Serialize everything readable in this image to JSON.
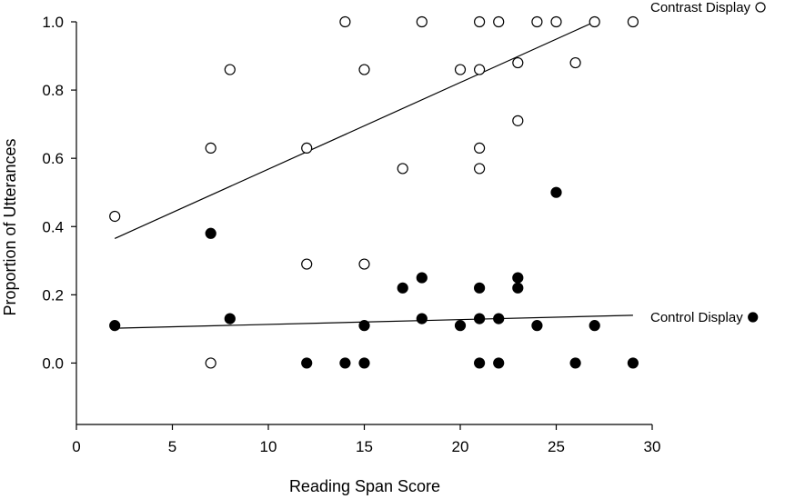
{
  "chart_data": {
    "type": "scatter",
    "xlabel": "Reading Span Score",
    "ylabel": "Proportion of Utterances",
    "xlim": [
      0,
      30
    ],
    "ylim": [
      -0.18,
      1.0
    ],
    "x_ticks": [
      0,
      5,
      10,
      15,
      20,
      25,
      30
    ],
    "y_ticks": [
      0.0,
      0.2,
      0.4,
      0.6,
      0.8,
      1.0
    ],
    "x_tick_labels": [
      "0",
      "5",
      "10",
      "15",
      "20",
      "25",
      "30"
    ],
    "y_tick_labels": [
      "0.0",
      "0.2",
      "0.4",
      "0.6",
      "0.8",
      "1.0"
    ],
    "grid": false,
    "legend_placement": "right of plot, beside each regression line",
    "series": [
      {
        "name": "Contrast Display",
        "marker": "open-circle",
        "color": "#000000",
        "points": [
          [
            2,
            0.43
          ],
          [
            7,
            0.63
          ],
          [
            7,
            0.0
          ],
          [
            8,
            0.86
          ],
          [
            12,
            0.63
          ],
          [
            12,
            0.29
          ],
          [
            14,
            1.0
          ],
          [
            15,
            0.86
          ],
          [
            15,
            0.29
          ],
          [
            17,
            0.57
          ],
          [
            18,
            1.0
          ],
          [
            20,
            0.86
          ],
          [
            21,
            1.0
          ],
          [
            21,
            0.86
          ],
          [
            21,
            0.63
          ],
          [
            21,
            0.57
          ],
          [
            22,
            1.0
          ],
          [
            23,
            0.88
          ],
          [
            23,
            0.71
          ],
          [
            24,
            1.0
          ],
          [
            25,
            1.0
          ],
          [
            26,
            0.88
          ],
          [
            27,
            1.0
          ],
          [
            29,
            1.0
          ]
        ],
        "fit_line": [
          [
            2,
            0.365
          ],
          [
            27,
            1.0
          ]
        ]
      },
      {
        "name": "Control Display",
        "marker": "filled-circle",
        "color": "#000000",
        "points": [
          [
            2,
            0.11
          ],
          [
            7,
            0.38
          ],
          [
            8,
            0.13
          ],
          [
            12,
            0.0
          ],
          [
            14,
            0.0
          ],
          [
            15,
            0.11
          ],
          [
            15,
            0.0
          ],
          [
            17,
            0.22
          ],
          [
            18,
            0.25
          ],
          [
            18,
            0.13
          ],
          [
            20,
            0.11
          ],
          [
            21,
            0.22
          ],
          [
            21,
            0.13
          ],
          [
            21,
            0.0
          ],
          [
            22,
            0.13
          ],
          [
            22,
            0.0
          ],
          [
            23,
            0.25
          ],
          [
            23,
            0.22
          ],
          [
            24,
            0.11
          ],
          [
            25,
            0.5
          ],
          [
            26,
            0.0
          ],
          [
            27,
            0.11
          ],
          [
            29,
            0.0
          ]
        ],
        "fit_line": [
          [
            2,
            0.102
          ],
          [
            29,
            0.14
          ]
        ]
      }
    ]
  }
}
